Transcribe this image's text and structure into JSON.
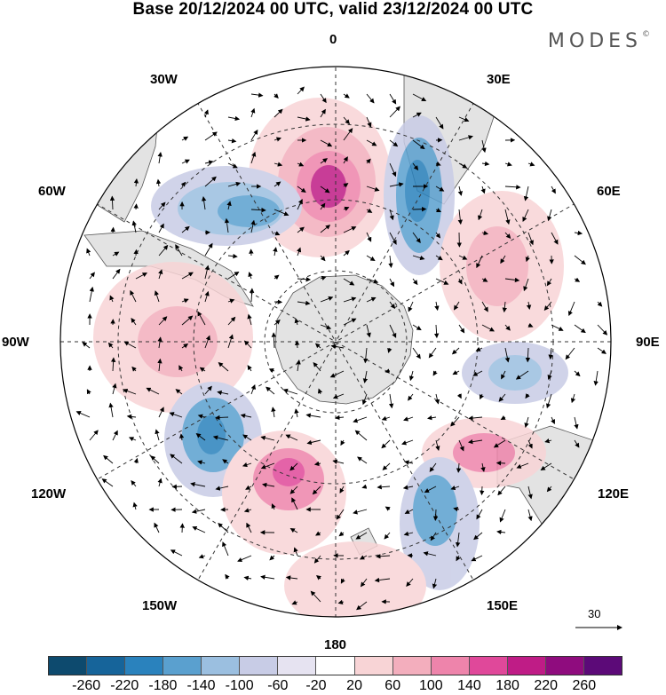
{
  "title": "Base 20/12/2024 00 UTC, valid 23/12/2024 00 UTC",
  "brand": "MODES",
  "brand_mark": "©",
  "longitude_labels": {
    "top": "0",
    "ne": "30E",
    "nw": "30W",
    "e60": "60E",
    "w60": "60W",
    "e90": "90E",
    "w90": "90W",
    "e120": "120E",
    "w120": "120W",
    "e150": "150E",
    "w150": "150W",
    "bottom": "180"
  },
  "reference_vector": {
    "label": "30",
    "icon": "arrow-right-icon"
  },
  "colorbar": {
    "labels": [
      "-260",
      "-220",
      "-180",
      "-140",
      "-100",
      "-60",
      "-20",
      "20",
      "60",
      "100",
      "140",
      "180",
      "220",
      "260"
    ],
    "colors": [
      "#0d4a6e",
      "#16649a",
      "#2a82bd",
      "#5aa0cf",
      "#9bbfe0",
      "#c8cce6",
      "#e6e3f1",
      "#ffffff",
      "#f8d4d6",
      "#f3aebd",
      "#ee84ab",
      "#e0489a",
      "#bf1c86",
      "#8f0c7e",
      "#5c0a78"
    ]
  },
  "map": {
    "projection": "south-polar-stereographic",
    "land_color": "#e3e3e3",
    "coast_color": "#555555",
    "grid_style": "dashed"
  }
}
